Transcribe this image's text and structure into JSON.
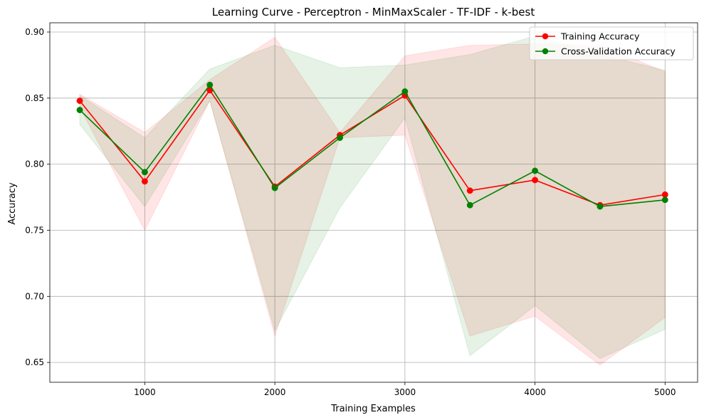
{
  "chart_data": {
    "type": "line",
    "title": "Learning Curve - Perceptron - MinMaxScaler - TF-IDF - k-best",
    "xlabel": "Training Examples",
    "ylabel": "Accuracy",
    "xlim": [
      270,
      5250
    ],
    "ylim": [
      0.635,
      0.907
    ],
    "xticks": [
      1000,
      2000,
      3000,
      4000,
      5000
    ],
    "xtick_labels": [
      "1000",
      "2000",
      "3000",
      "4000",
      "5000"
    ],
    "yticks": [
      0.65,
      0.7,
      0.75,
      0.8,
      0.85,
      0.9
    ],
    "ytick_labels": [
      "0.65",
      "0.70",
      "0.75",
      "0.80",
      "0.85",
      "0.90"
    ],
    "grid": true,
    "legend_position": "top-right",
    "x": [
      500,
      1000,
      1500,
      2000,
      2500,
      3000,
      3500,
      4000,
      4500,
      5000
    ],
    "series": [
      {
        "name": "Training Accuracy",
        "color": "#ff0000",
        "band_color": "#ff0000",
        "values": [
          0.848,
          0.787,
          0.856,
          0.783,
          0.822,
          0.852,
          0.78,
          0.788,
          0.769,
          0.777
        ],
        "lower": [
          0.843,
          0.75,
          0.848,
          0.67,
          0.82,
          0.822,
          0.67,
          0.685,
          0.648,
          0.684
        ],
        "upper": [
          0.853,
          0.824,
          0.864,
          0.896,
          0.824,
          0.882,
          0.89,
          0.891,
          0.89,
          0.87
        ]
      },
      {
        "name": "Cross-Validation Accuracy",
        "color": "#008000",
        "band_color": "#008000",
        "values": [
          0.841,
          0.794,
          0.86,
          0.782,
          0.82,
          0.855,
          0.769,
          0.795,
          0.768,
          0.773
        ],
        "lower": [
          0.83,
          0.768,
          0.848,
          0.674,
          0.767,
          0.835,
          0.655,
          0.693,
          0.653,
          0.675
        ],
        "upper": [
          0.852,
          0.82,
          0.872,
          0.89,
          0.873,
          0.875,
          0.883,
          0.897,
          0.883,
          0.871
        ]
      }
    ]
  }
}
